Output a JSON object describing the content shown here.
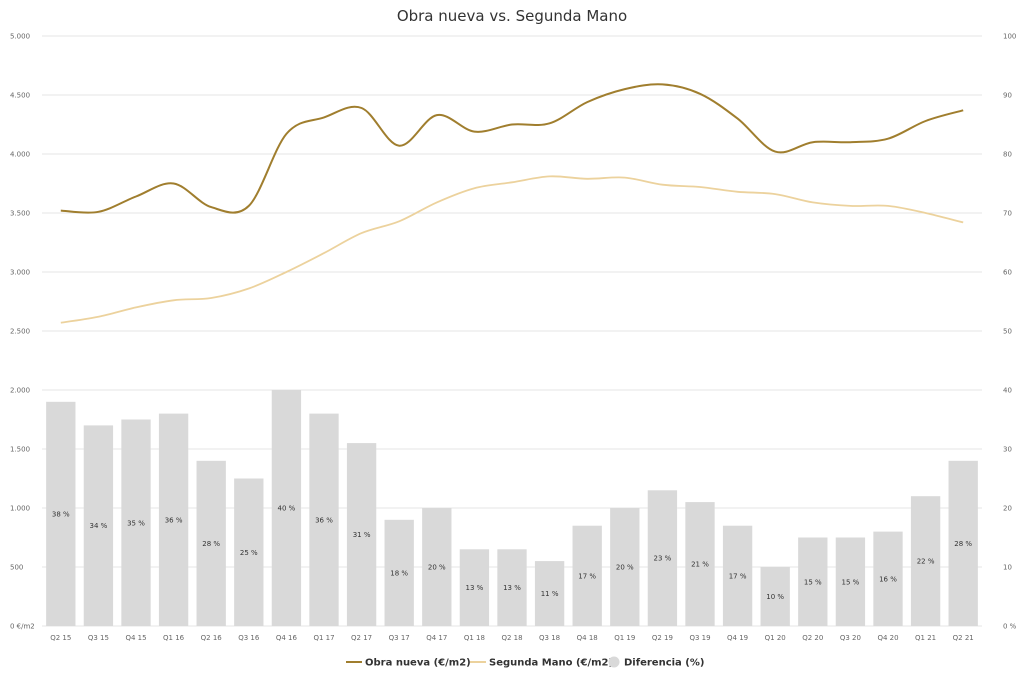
{
  "chart_data": {
    "type": "bar",
    "title": "Obra nueva vs. Segunda Mano",
    "categories": [
      "Q2 15",
      "Q3 15",
      "Q4 15",
      "Q1 16",
      "Q2 16",
      "Q3 16",
      "Q4 16",
      "Q1 17",
      "Q2 17",
      "Q3 17",
      "Q4 17",
      "Q1 18",
      "Q2 18",
      "Q3 18",
      "Q4 18",
      "Q1 19",
      "Q2 19",
      "Q3 19",
      "Q4 19",
      "Q1 20",
      "Q2 20",
      "Q3 20",
      "Q4 20",
      "Q1 21",
      "Q2 21"
    ],
    "left_axis": {
      "ticks": [
        "0 €/m2",
        "500",
        "1.000",
        "1.500",
        "2.000",
        "2.500",
        "3.000",
        "3.500",
        "4.000",
        "4.500",
        "5.000"
      ],
      "ylim": [
        0,
        5000
      ]
    },
    "right_axis": {
      "ticks": [
        "0 %",
        "10",
        "20",
        "30",
        "40",
        "50",
        "60",
        "70",
        "80",
        "90",
        "100"
      ],
      "ylim": [
        0,
        100
      ]
    },
    "grid": true,
    "legend_position": "bottom-center",
    "series": [
      {
        "name": "Obra nueva (€/m2)",
        "type": "line",
        "axis": "left",
        "color": "#a07e2e",
        "values": [
          3520,
          3510,
          3640,
          3750,
          3550,
          3560,
          4170,
          4310,
          4390,
          4070,
          4330,
          4190,
          4250,
          4260,
          4440,
          4550,
          4590,
          4510,
          4300,
          4020,
          4100,
          4100,
          4130,
          4280,
          4370
        ]
      },
      {
        "name": "Segunda Mano (€/m2)",
        "type": "line",
        "axis": "left",
        "color": "#ecd29d",
        "values": [
          2570,
          2620,
          2700,
          2760,
          2780,
          2860,
          3000,
          3160,
          3330,
          3430,
          3590,
          3710,
          3760,
          3810,
          3790,
          3800,
          3740,
          3720,
          3680,
          3660,
          3590,
          3560,
          3560,
          3500,
          3420
        ]
      },
      {
        "name": "Diferencia (%)",
        "type": "bar",
        "axis": "right",
        "color": "#d9d9d9",
        "values": [
          38,
          34,
          35,
          36,
          28,
          25,
          40,
          36,
          31,
          18,
          20,
          13,
          13,
          11,
          17,
          20,
          23,
          21,
          17,
          10,
          15,
          15,
          16,
          22,
          28
        ],
        "labels": [
          "38 %",
          "34 %",
          "35 %",
          "36 %",
          "28 %",
          "25 %",
          "40 %",
          "36 %",
          "31 %",
          "18 %",
          "20 %",
          "13 %",
          "13 %",
          "11 %",
          "17 %",
          "20 %",
          "23 %",
          "21 %",
          "17 %",
          "10 %",
          "15 %",
          "15 %",
          "16 %",
          "22 %",
          "28 %"
        ]
      }
    ]
  }
}
